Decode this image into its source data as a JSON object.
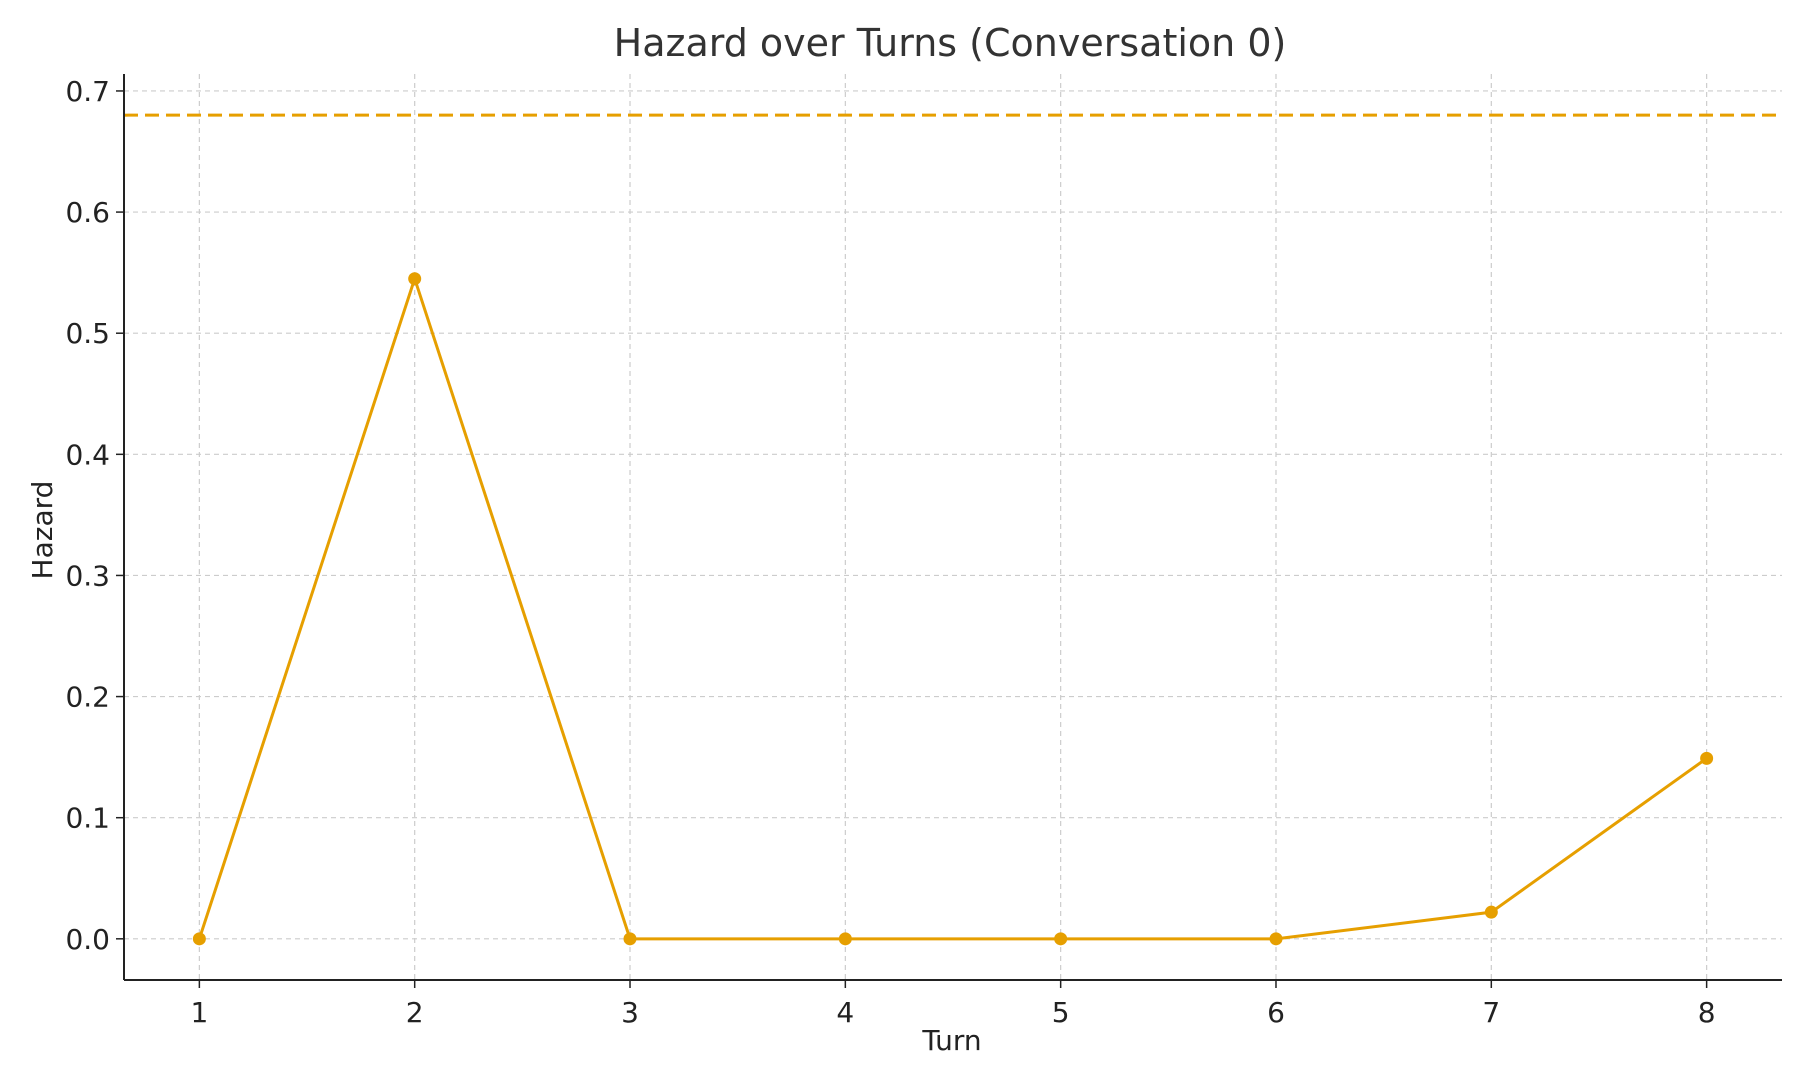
{
  "chart_data": {
    "type": "line",
    "title": "Hazard over Turns (Conversation 0)",
    "xlabel": "Turn",
    "ylabel": "Hazard",
    "x": [
      1,
      2,
      3,
      4,
      5,
      6,
      7,
      8
    ],
    "series": [
      {
        "values": [
          0.0,
          0.545,
          0.0,
          0.0,
          0.0,
          0.0,
          0.022,
          0.149
        ],
        "color": "#E69F00",
        "marker": "circle"
      }
    ],
    "reference_line": {
      "y": 0.68,
      "style": "dashed",
      "color": "#E69F00"
    },
    "xlim": [
      0.65,
      8.35
    ],
    "ylim": [
      -0.034,
      0.714
    ],
    "x_ticks": [
      "1",
      "2",
      "3",
      "4",
      "5",
      "6",
      "7",
      "8"
    ],
    "y_ticks": [
      "0.0",
      "0.1",
      "0.2",
      "0.3",
      "0.4",
      "0.5",
      "0.6",
      "0.7"
    ],
    "y_tick_values": [
      0.0,
      0.1,
      0.2,
      0.3,
      0.4,
      0.5,
      0.6,
      0.7
    ],
    "grid": true,
    "legend": "none"
  }
}
